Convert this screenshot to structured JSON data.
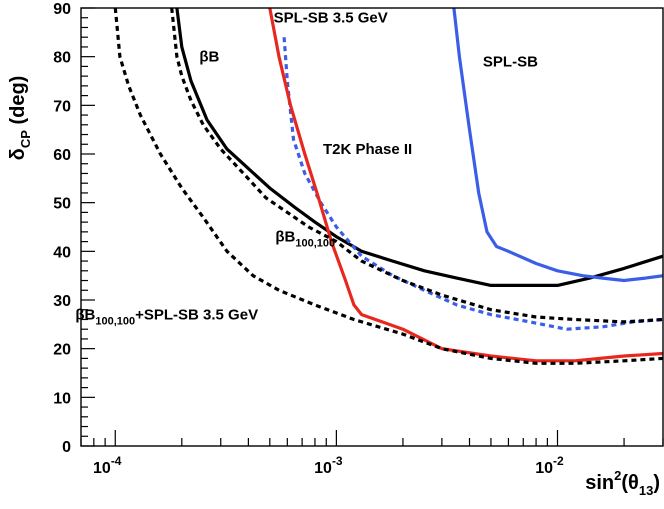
{
  "chart_data": {
    "type": "line",
    "title": "",
    "xlabel": {
      "base": "sin",
      "sup": "2",
      "open": "(θ",
      "sub": "13",
      "close": ")"
    },
    "ylabel": {
      "base": "δ",
      "sub": "CP",
      "rest": " (deg)"
    },
    "x_scale": "log",
    "xlim": [
      7e-05,
      0.03
    ],
    "ylim": [
      0,
      90
    ],
    "y_ticks": [
      0,
      10,
      20,
      30,
      40,
      50,
      60,
      70,
      80,
      90
    ],
    "x_tick_labels": [
      {
        "value": 0.0001,
        "base": "10",
        "exp": "-4"
      },
      {
        "value": 0.001,
        "base": "10",
        "exp": "-3"
      },
      {
        "value": 0.01,
        "base": "10",
        "exp": "-2"
      }
    ],
    "series": [
      {
        "name": "βB",
        "color": "#000000",
        "dash": "solid",
        "points": [
          [
            0.00019,
            90
          ],
          [
            0.0002,
            82
          ],
          [
            0.00022,
            75
          ],
          [
            0.00026,
            67
          ],
          [
            0.00032,
            61
          ],
          [
            0.0004,
            57
          ],
          [
            0.0005,
            53
          ],
          [
            0.00065,
            49
          ],
          [
            0.0008,
            46
          ],
          [
            0.001,
            43
          ],
          [
            0.0013,
            40
          ],
          [
            0.0018,
            38
          ],
          [
            0.0025,
            36
          ],
          [
            0.0035,
            34.5
          ],
          [
            0.005,
            33
          ],
          [
            0.007,
            33
          ],
          [
            0.01,
            33
          ],
          [
            0.014,
            34.5
          ],
          [
            0.02,
            36.5
          ],
          [
            0.03,
            39
          ]
        ]
      },
      {
        "name": "SPL-SB 3.5 GeV",
        "color": "#3a5ee8",
        "dash": "dashed",
        "points": [
          [
            0.00058,
            84
          ],
          [
            0.0006,
            75
          ],
          [
            0.00064,
            63
          ],
          [
            0.00072,
            56
          ],
          [
            0.00085,
            50
          ],
          [
            0.001,
            45
          ],
          [
            0.0013,
            39
          ],
          [
            0.0018,
            35
          ],
          [
            0.0025,
            32
          ],
          [
            0.0035,
            29
          ],
          [
            0.005,
            27
          ],
          [
            0.0075,
            25.5
          ],
          [
            0.011,
            24
          ],
          [
            0.016,
            24.5
          ],
          [
            0.022,
            25.5
          ],
          [
            0.03,
            26
          ]
        ]
      },
      {
        "name": "SPL-SB",
        "color": "#3a5ee8",
        "dash": "solid",
        "points": [
          [
            0.0034,
            90
          ],
          [
            0.0036,
            80
          ],
          [
            0.004,
            65
          ],
          [
            0.0044,
            52
          ],
          [
            0.0048,
            44
          ],
          [
            0.0053,
            41
          ],
          [
            0.006,
            40
          ],
          [
            0.008,
            37.5
          ],
          [
            0.01,
            36
          ],
          [
            0.013,
            35
          ],
          [
            0.016,
            34.5
          ],
          [
            0.02,
            34
          ],
          [
            0.025,
            34.5
          ],
          [
            0.03,
            35
          ]
        ]
      },
      {
        "name": "T2K Phase II",
        "color": "#e8281e",
        "dash": "solid",
        "points": [
          [
            0.0005,
            90
          ],
          [
            0.00055,
            80
          ],
          [
            0.00062,
            70
          ],
          [
            0.00072,
            60
          ],
          [
            0.00083,
            51
          ],
          [
            0.00095,
            42
          ],
          [
            0.0011,
            34
          ],
          [
            0.0012,
            29
          ],
          [
            0.0013,
            27
          ],
          [
            0.002,
            24
          ],
          [
            0.003,
            20
          ],
          [
            0.005,
            18.5
          ],
          [
            0.008,
            17.5
          ],
          [
            0.012,
            17.5
          ],
          [
            0.02,
            18.5
          ],
          [
            0.03,
            19
          ]
        ]
      },
      {
        "name": "βB100,100",
        "color": "#000000",
        "dash": "dashed",
        "points": [
          [
            0.00018,
            90
          ],
          [
            0.00019,
            80
          ],
          [
            0.0002,
            76
          ],
          [
            0.00022,
            71
          ],
          [
            0.00025,
            66
          ],
          [
            0.0003,
            61
          ],
          [
            0.00038,
            56
          ],
          [
            0.00048,
            51
          ],
          [
            0.0006,
            48
          ],
          [
            0.00075,
            45
          ],
          [
            0.001,
            42
          ],
          [
            0.0013,
            38
          ],
          [
            0.002,
            34
          ],
          [
            0.003,
            31
          ],
          [
            0.005,
            28
          ],
          [
            0.008,
            26.5
          ],
          [
            0.012,
            26
          ],
          [
            0.02,
            25.5
          ],
          [
            0.03,
            26
          ]
        ]
      },
      {
        "name": "βB100,100+SPL-SB 3.5 GeV",
        "color": "#000000",
        "dash": "dashed",
        "points": [
          [
            0.0001,
            90
          ],
          [
            0.000105,
            80
          ],
          [
            0.000115,
            74
          ],
          [
            0.00013,
            68
          ],
          [
            0.00016,
            60
          ],
          [
            0.0002,
            53
          ],
          [
            0.00025,
            47
          ],
          [
            0.00032,
            40
          ],
          [
            0.00042,
            35
          ],
          [
            0.00055,
            32
          ],
          [
            0.0008,
            29
          ],
          [
            0.0012,
            26
          ],
          [
            0.002,
            23
          ],
          [
            0.003,
            20
          ],
          [
            0.005,
            18
          ],
          [
            0.008,
            17
          ],
          [
            0.012,
            17
          ],
          [
            0.02,
            17.5
          ],
          [
            0.03,
            18
          ]
        ]
      }
    ],
    "annotations": [
      {
        "id": "ann-betab",
        "text": "βB",
        "sub": "",
        "rest": "",
        "x": 0.00024,
        "y": 79
      },
      {
        "id": "ann-spl35",
        "text": "SPL-SB 3.5 GeV",
        "sub": "",
        "rest": "",
        "x": 0.00052,
        "y": 87
      },
      {
        "id": "ann-splsb",
        "text": "SPL-SB",
        "sub": "",
        "rest": "",
        "x": 0.0046,
        "y": 78
      },
      {
        "id": "ann-t2k",
        "text": "T2K Phase II",
        "sub": "",
        "rest": "",
        "x": 0.00087,
        "y": 60
      },
      {
        "id": "ann-betab100",
        "text": "βB",
        "sub": "100,100",
        "rest": "",
        "x": 0.00053,
        "y": 42
      },
      {
        "id": "ann-combined",
        "text": "βB",
        "sub": "100,100",
        "rest": "+SPL-SB 3.5 GeV",
        "x": 6.6e-05,
        "y": 26
      }
    ]
  }
}
